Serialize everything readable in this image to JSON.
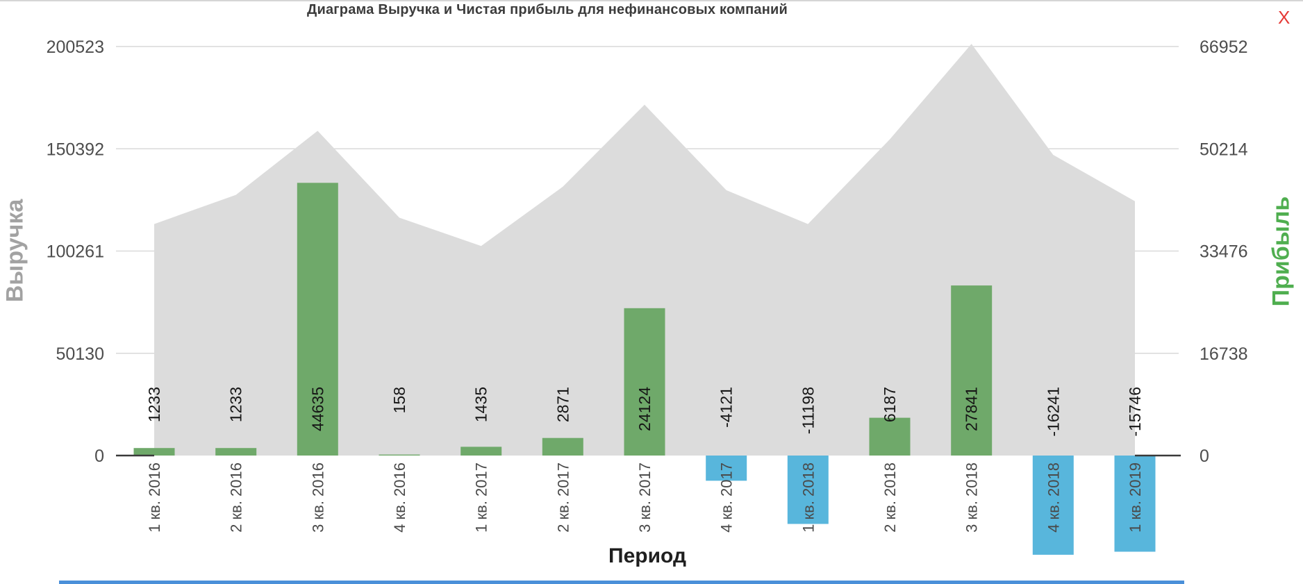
{
  "page": {
    "close_label": "X",
    "close_color": "#e53935",
    "footer_accent_color": "#4a90d9"
  },
  "chart_data": {
    "type": "combo-area-bar",
    "title": "Диаграма Выручка и Чистая прибыль для нефинансовых компаний",
    "categories": [
      "1 кв. 2016",
      "2 кв. 2016",
      "3 кв. 2016",
      "4 кв. 2016",
      "1 кв. 2017",
      "2 кв. 2017",
      "3 кв. 2017",
      "4 кв. 2017",
      "1 кв. 2018",
      "2 кв. 2018",
      "3 кв. 2018",
      "4 кв. 2018",
      "1 кв. 2019"
    ],
    "series": [
      {
        "name": "Выручка",
        "type": "area",
        "axis": "left",
        "color": "#dcdcdc",
        "values": [
          113500,
          127800,
          159200,
          116600,
          102700,
          131800,
          172000,
          130100,
          113500,
          155000,
          201800,
          147400,
          124700
        ]
      },
      {
        "name": "Прибыль",
        "type": "bar",
        "axis": "right",
        "color_positive": "#6fa96a",
        "color_negative": "#58b6dc",
        "values": [
          1233,
          1233,
          44635,
          158,
          1435,
          2871,
          24124,
          -4121,
          -11198,
          6187,
          27841,
          -16241,
          -15746
        ]
      }
    ],
    "bar_value_labels": [
      "1233",
      "1233",
      "44635",
      "158",
      "1435",
      "2871",
      "24124",
      "-4121",
      "-11198",
      "6187",
      "27841",
      "-16241",
      "-15746"
    ],
    "left_axis": {
      "label": "Выручка",
      "label_color": "#a2a2a2",
      "ticks": [
        0,
        50130,
        100261,
        150392,
        200523
      ],
      "max": 200523
    },
    "right_axis": {
      "label": "Прибыль",
      "label_color": "#4fae4f",
      "ticks": [
        0,
        16738,
        33476,
        50214,
        66952
      ],
      "max": 66952
    },
    "x_axis": {
      "label": "Период"
    },
    "grid": true,
    "legend_position": "none",
    "gridline_color": "#d9d9d9",
    "zero_line_color": "#3a3a3a"
  }
}
